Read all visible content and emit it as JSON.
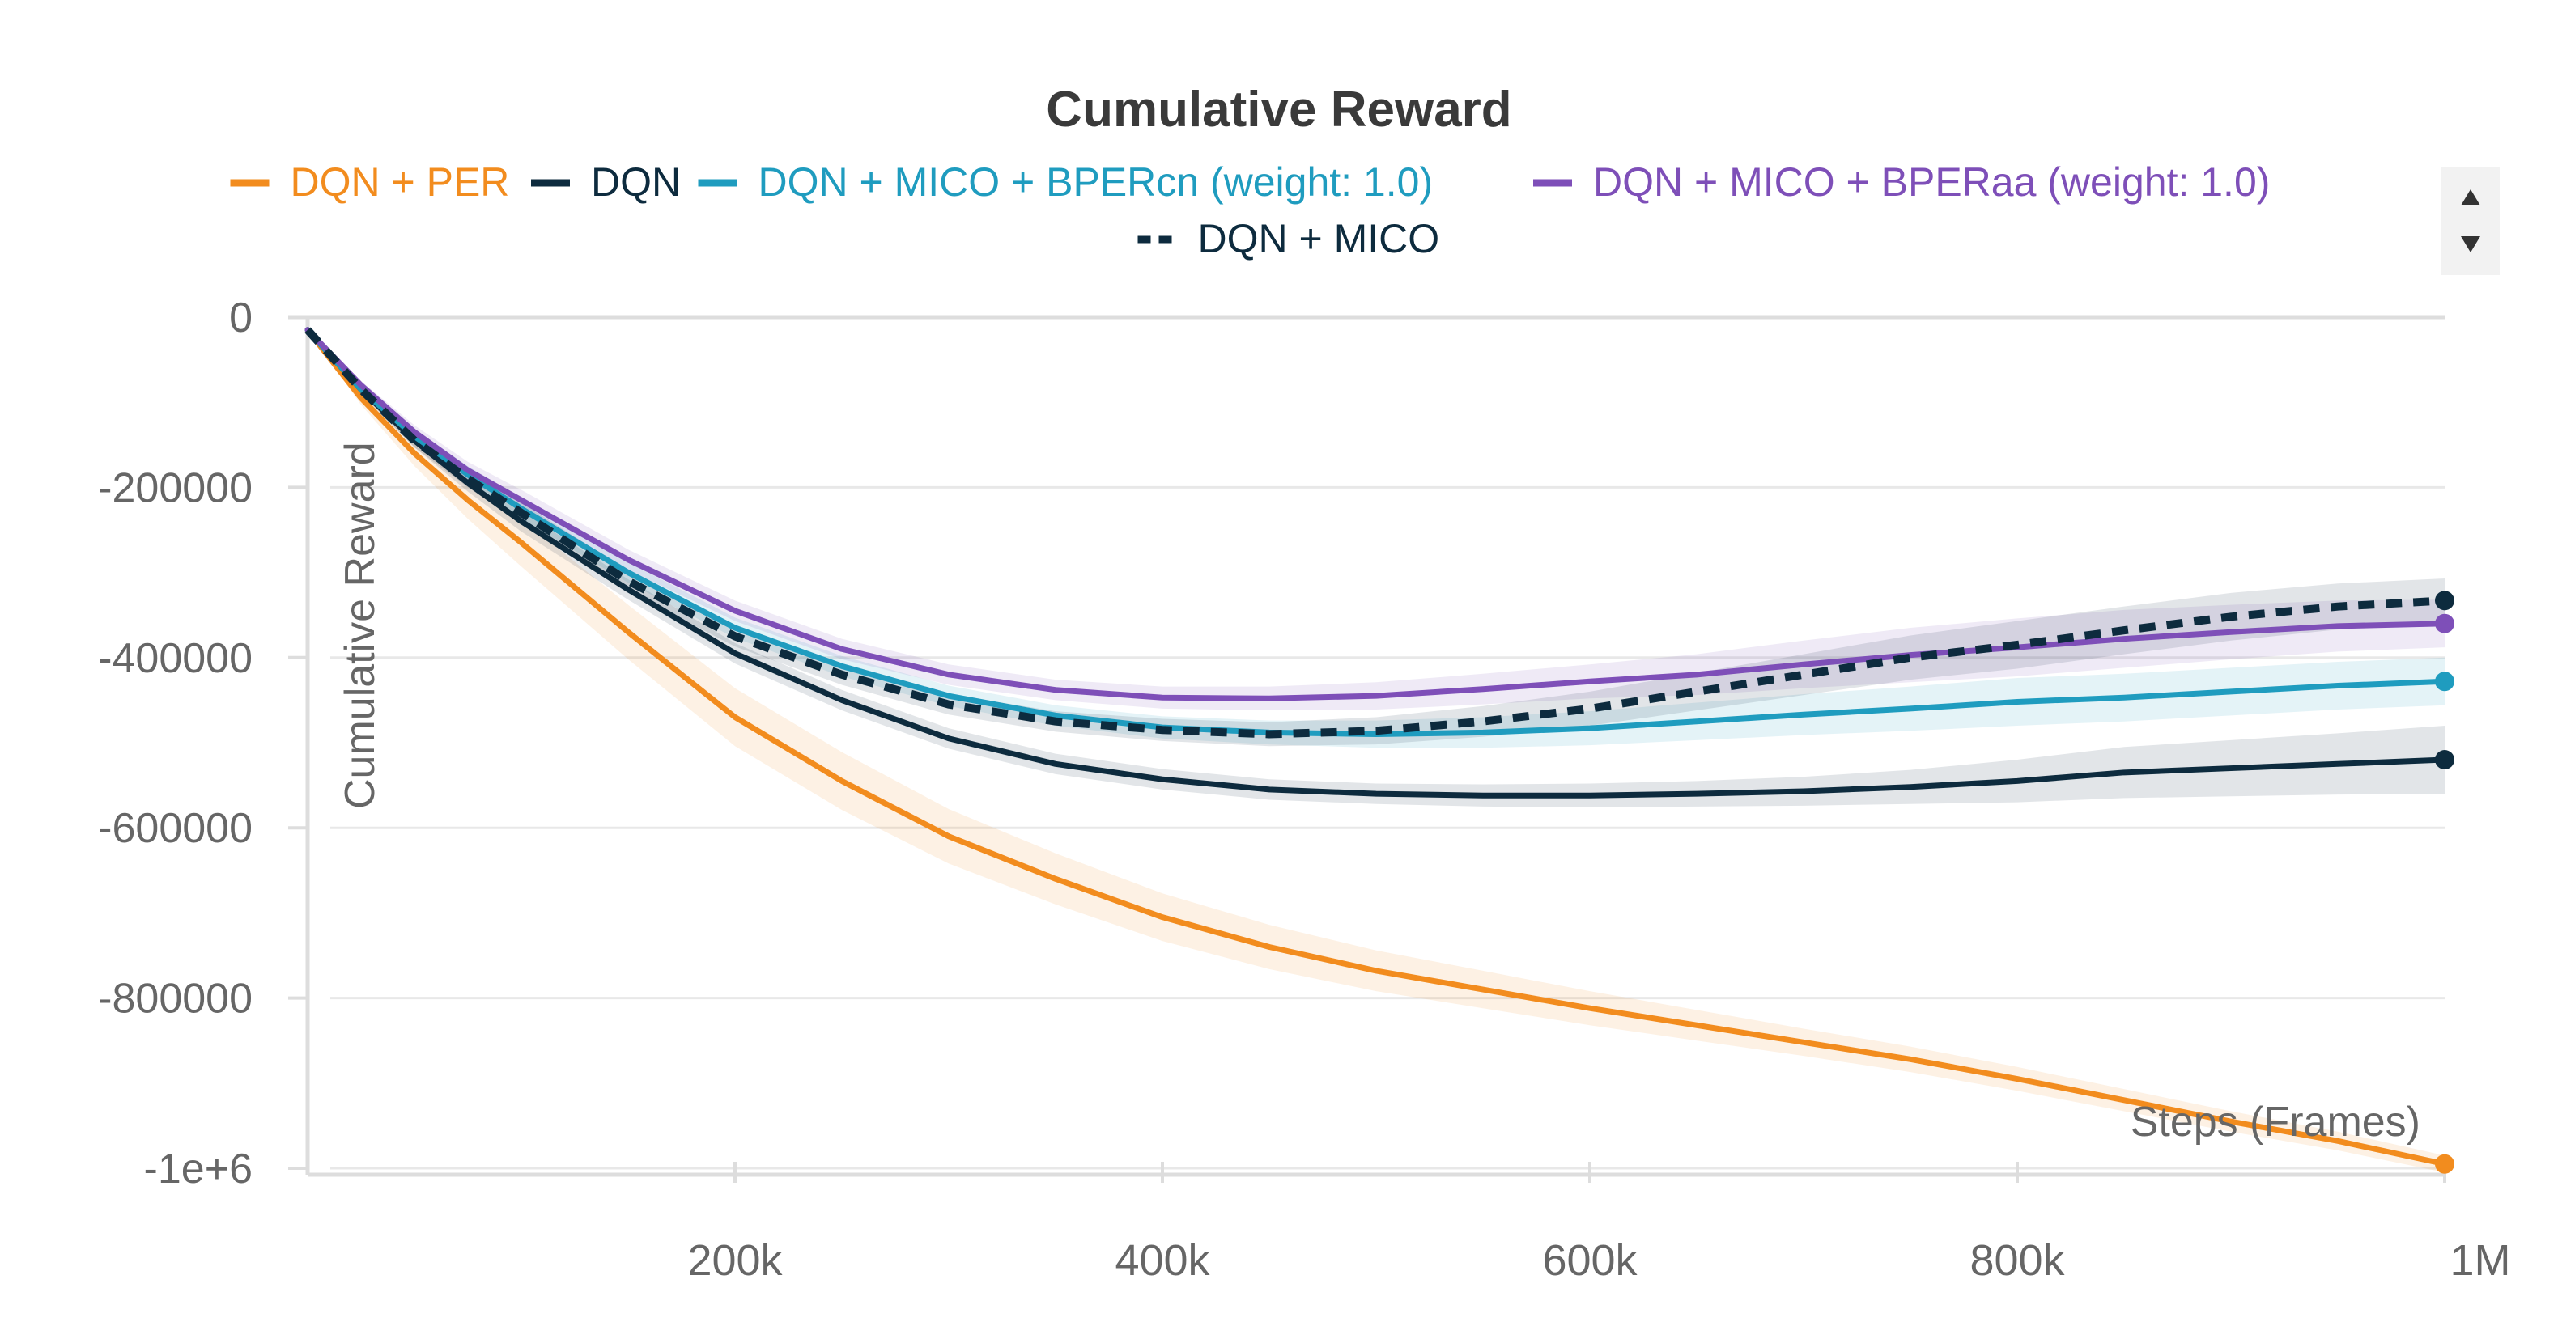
{
  "chart_data": {
    "type": "line",
    "title": "Cumulative Reward",
    "xlabel": "Steps (Frames)",
    "ylabel": "Cumulative Reward",
    "xlim": [
      0,
      1000000
    ],
    "ylim": [
      -1000000,
      0
    ],
    "x_ticks": [
      {
        "value": 200000,
        "label": "200k"
      },
      {
        "value": 400000,
        "label": "400k"
      },
      {
        "value": 600000,
        "label": "600k"
      },
      {
        "value": 800000,
        "label": "800k"
      },
      {
        "value": 1000000,
        "label": "1M"
      }
    ],
    "y_ticks": [
      {
        "value": 0,
        "label": "0"
      },
      {
        "value": -200000,
        "label": "-200000"
      },
      {
        "value": -400000,
        "label": "-400000"
      },
      {
        "value": -600000,
        "label": "-600000"
      },
      {
        "value": -800000,
        "label": "-800000"
      },
      {
        "value": -1000000,
        "label": "-1e+6"
      }
    ],
    "grid": true,
    "legend_position": "top",
    "series": [
      {
        "name": "DQN + PER",
        "color": "#f28c1e",
        "style": "solid",
        "band": true,
        "x": [
          0,
          25000,
          50000,
          75000,
          100000,
          150000,
          200000,
          250000,
          300000,
          350000,
          400000,
          450000,
          500000,
          550000,
          600000,
          650000,
          700000,
          750000,
          800000,
          850000,
          900000,
          950000,
          1000000
        ],
        "y": [
          -15000,
          -95000,
          -160000,
          -215000,
          -265000,
          -370000,
          -470000,
          -545000,
          -610000,
          -660000,
          -705000,
          -740000,
          -768000,
          -790000,
          -812000,
          -832000,
          -852000,
          -872000,
          -895000,
          -920000,
          -945000,
          -968000,
          -995000
        ],
        "band_width": [
          0,
          8000,
          15000,
          22000,
          28000,
          32000,
          34000,
          34000,
          32000,
          30000,
          28000,
          26000,
          24000,
          22000,
          20000,
          18000,
          16000,
          15000,
          14000,
          13000,
          12000,
          11000,
          10000
        ]
      },
      {
        "name": "DQN",
        "color": "#0d2b3e",
        "style": "solid",
        "band": true,
        "x": [
          0,
          25000,
          50000,
          75000,
          100000,
          150000,
          200000,
          250000,
          300000,
          350000,
          400000,
          450000,
          500000,
          550000,
          600000,
          650000,
          700000,
          750000,
          800000,
          850000,
          900000,
          950000,
          1000000
        ],
        "y": [
          -15000,
          -85000,
          -145000,
          -195000,
          -240000,
          -320000,
          -395000,
          -450000,
          -495000,
          -525000,
          -543000,
          -555000,
          -560000,
          -562000,
          -562000,
          -560000,
          -557000,
          -552000,
          -545000,
          -535000,
          -530000,
          -525000,
          -520000
        ],
        "band_width": [
          0,
          5000,
          8000,
          10000,
          12000,
          12000,
          12000,
          12000,
          12000,
          12000,
          12000,
          12000,
          12000,
          13000,
          14000,
          15000,
          17000,
          20000,
          25000,
          30000,
          33000,
          36000,
          40000
        ]
      },
      {
        "name": "DQN + MICO + BPERcn (weight: 1.0)",
        "color": "#1f9cbf",
        "style": "solid",
        "band": true,
        "x": [
          0,
          25000,
          50000,
          75000,
          100000,
          150000,
          200000,
          250000,
          300000,
          350000,
          400000,
          450000,
          500000,
          550000,
          600000,
          650000,
          700000,
          750000,
          800000,
          850000,
          900000,
          950000,
          1000000
        ],
        "y": [
          -15000,
          -85000,
          -140000,
          -185000,
          -225000,
          -300000,
          -365000,
          -410000,
          -445000,
          -468000,
          -482000,
          -488000,
          -490000,
          -488000,
          -483000,
          -475000,
          -467000,
          -460000,
          -452000,
          -447000,
          -440000,
          -433000,
          -428000
        ],
        "band_width": [
          0,
          5000,
          8000,
          10000,
          12000,
          12000,
          12000,
          12000,
          12000,
          12000,
          13000,
          14000,
          16000,
          18000,
          20000,
          22000,
          24000,
          26000,
          28000,
          28000,
          28000,
          28000,
          28000
        ]
      },
      {
        "name": "DQN + MICO + BPERaa (weight: 1.0)",
        "color": "#7e4fb8",
        "style": "solid",
        "band": true,
        "x": [
          0,
          25000,
          50000,
          75000,
          100000,
          150000,
          200000,
          250000,
          300000,
          350000,
          400000,
          450000,
          500000,
          550000,
          600000,
          650000,
          700000,
          750000,
          800000,
          850000,
          900000,
          950000,
          1000000
        ],
        "y": [
          -15000,
          -80000,
          -135000,
          -180000,
          -215000,
          -285000,
          -345000,
          -390000,
          -420000,
          -438000,
          -447000,
          -448000,
          -445000,
          -437000,
          -428000,
          -420000,
          -408000,
          -397000,
          -388000,
          -378000,
          -370000,
          -363000,
          -360000
        ],
        "band_width": [
          0,
          5000,
          8000,
          10000,
          12000,
          12000,
          12000,
          12000,
          12000,
          12000,
          13000,
          14000,
          16000,
          18000,
          20000,
          24000,
          28000,
          32000,
          34000,
          34000,
          32000,
          30000,
          28000
        ]
      },
      {
        "name": "DQN + MICO",
        "color": "#0d2b3e",
        "style": "dashed",
        "band": true,
        "x": [
          0,
          25000,
          50000,
          75000,
          100000,
          150000,
          200000,
          250000,
          300000,
          350000,
          400000,
          450000,
          500000,
          550000,
          600000,
          650000,
          700000,
          750000,
          800000,
          850000,
          900000,
          950000,
          1000000
        ],
        "y": [
          -15000,
          -85000,
          -145000,
          -190000,
          -230000,
          -310000,
          -375000,
          -420000,
          -455000,
          -475000,
          -485000,
          -490000,
          -486000,
          -475000,
          -460000,
          -440000,
          -420000,
          -400000,
          -385000,
          -368000,
          -352000,
          -340000,
          -333000
        ],
        "band_width": [
          0,
          5000,
          8000,
          10000,
          12000,
          12000,
          12000,
          12000,
          12000,
          12000,
          13000,
          14000,
          16000,
          18000,
          20000,
          22000,
          24000,
          26000,
          28000,
          28000,
          28000,
          27000,
          26000
        ]
      }
    ]
  },
  "legend_scroll": {
    "up_icon": "triangle-up-icon",
    "down_icon": "triangle-down-icon"
  }
}
